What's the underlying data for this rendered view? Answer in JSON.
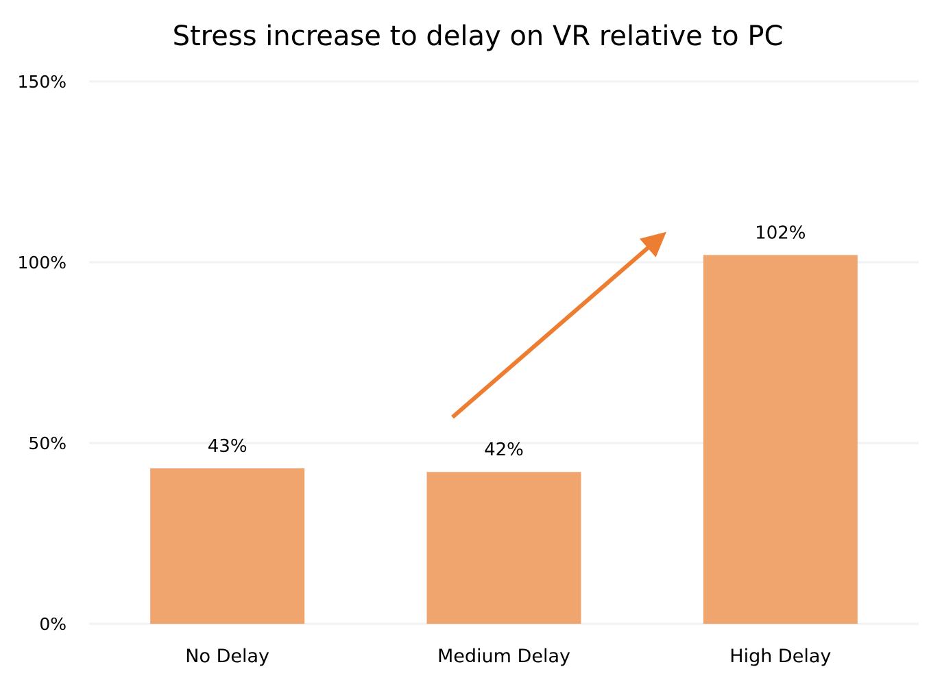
{
  "chart_data": {
    "type": "bar",
    "title": "Stress increase to delay on VR relative to PC",
    "xlabel": "",
    "ylabel": "",
    "categories": [
      "No Delay",
      "Medium Delay",
      "High Delay"
    ],
    "values": [
      43,
      42,
      102
    ],
    "data_labels": [
      "43%",
      "42%",
      "102%"
    ],
    "ylim": [
      0,
      150
    ],
    "yticks": [
      0,
      50,
      100,
      150
    ],
    "ytick_labels": [
      "0%",
      "50%",
      "100%",
      "150%"
    ],
    "grid": true,
    "legend": "none",
    "bar_color": "#F0A46E",
    "annotations": [
      {
        "type": "arrow",
        "from_category": "Medium Delay",
        "to_category": "High Delay",
        "color": "#ED7D31",
        "meaning": "increase"
      }
    ]
  }
}
